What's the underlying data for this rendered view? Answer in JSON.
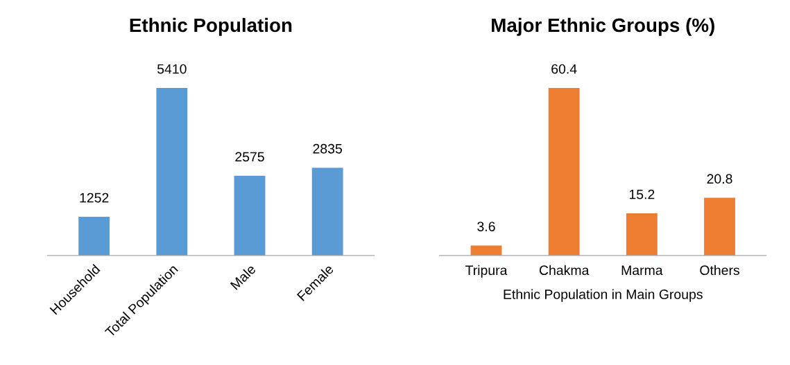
{
  "chart_data": [
    {
      "type": "bar",
      "title": "Ethnic Population",
      "categories": [
        "Household",
        "Total Population",
        "Male",
        "Female"
      ],
      "values": [
        1252,
        5410,
        2575,
        2835
      ],
      "color": "#5b9bd5",
      "data_labels": true,
      "grid": false,
      "legend": false,
      "tick_labels": "x"
    },
    {
      "type": "bar",
      "title": "Major Ethnic Groups (%)",
      "xlabel": "Ethnic Population in Main Groups",
      "categories": [
        "Tripura",
        "Chakma",
        "Marma",
        "Others"
      ],
      "values": [
        3.6,
        60.4,
        15.2,
        20.8
      ],
      "color": "#ed7d31",
      "data_labels": true,
      "grid": false,
      "legend": false,
      "tick_labels": "x"
    }
  ]
}
